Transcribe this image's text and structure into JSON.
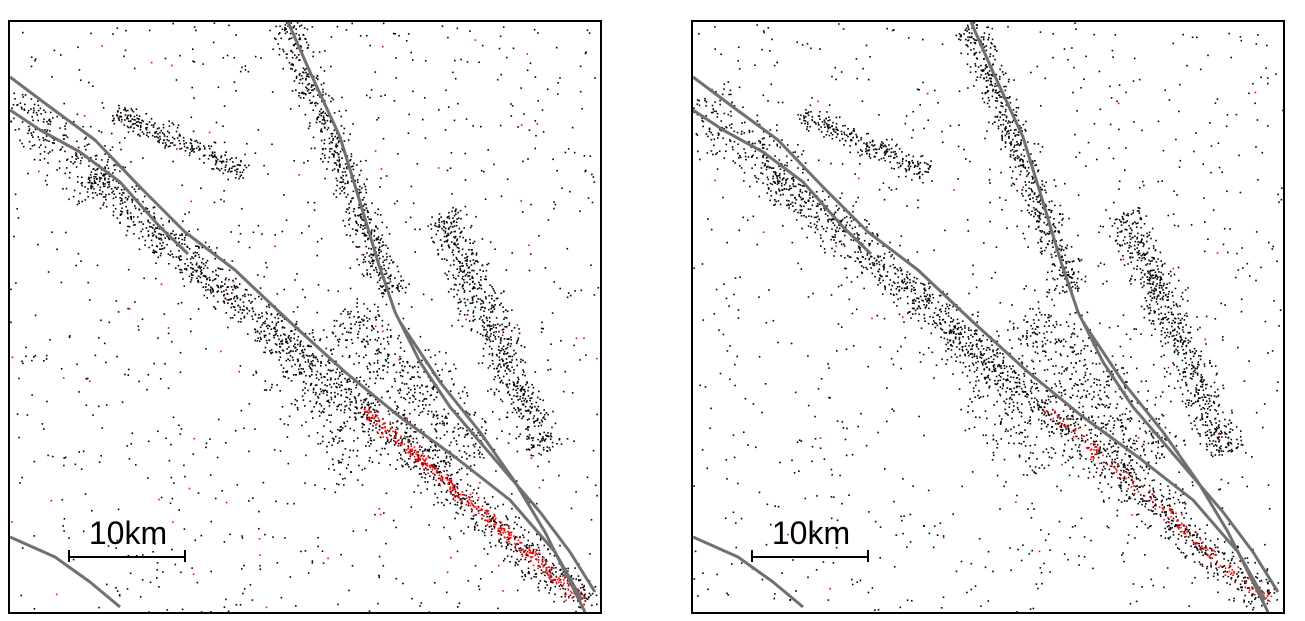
{
  "colors": {
    "fault": "#707070",
    "seismicity": "#000000",
    "highlight": "#ff0000",
    "frame": "#000000",
    "background": "#ffffff"
  },
  "map_panels": [
    {
      "id": "left",
      "scale_bar": {
        "label": "10km"
      },
      "highlight_level": "high"
    },
    {
      "id": "right",
      "scale_bar": {
        "label": "10km"
      },
      "highlight_level": "low"
    }
  ]
}
